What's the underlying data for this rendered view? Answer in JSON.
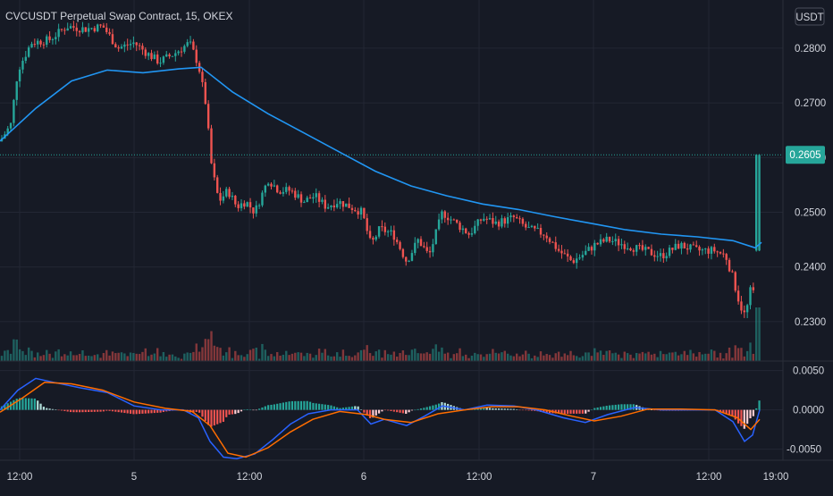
{
  "colors": {
    "background": "#161a25",
    "grid": "#232734",
    "up": "#26a69a",
    "down": "#ef5350",
    "ma": "#2196f3",
    "macd": "#2962ff",
    "signal": "#ff6d00",
    "last_price_label": "#26a69a",
    "text": "#d1d4dc"
  },
  "header": {
    "title": "CVCUSDT Perpetual Swap Contract, 15, OKEX",
    "currency_button": "USDT"
  },
  "chart_data": [
    {
      "type": "candlestick",
      "panel": "price",
      "title": "CVCUSDT Perpetual Swap Contract, 15, OKEX",
      "ylim": [
        0.2228,
        0.2888
      ],
      "yticks": [
        "0.2300",
        "0.2400",
        "0.2500",
        "0.2600",
        "0.2700",
        "0.2800"
      ],
      "last_price": "0.2605",
      "grid": true,
      "series": [
        {
          "name": "",
          "kind": "price_path",
          "points": [
            [
              0,
              0.263
            ],
            [
              12,
              0.266
            ],
            [
              20,
              0.276
            ],
            [
              35,
              0.281
            ],
            [
              55,
              0.2815
            ],
            [
              75,
              0.284
            ],
            [
              95,
              0.2835
            ],
            [
              115,
              0.284
            ],
            [
              132,
              0.28
            ],
            [
              150,
              0.281
            ],
            [
              165,
              0.279
            ],
            [
              178,
              0.2775
            ],
            [
              195,
              0.279
            ],
            [
              212,
              0.281
            ],
            [
              222,
              0.277
            ],
            [
              230,
              0.27
            ],
            [
              237,
              0.258
            ],
            [
              245,
              0.252
            ],
            [
              255,
              0.254
            ],
            [
              265,
              0.251
            ],
            [
              275,
              0.252
            ],
            [
              285,
              0.25
            ],
            [
              300,
              0.256
            ],
            [
              312,
              0.254
            ],
            [
              325,
              0.254
            ],
            [
              340,
              0.252
            ],
            [
              352,
              0.253
            ],
            [
              365,
              0.251
            ],
            [
              378,
              0.252
            ],
            [
              392,
              0.251
            ],
            [
              405,
              0.25
            ],
            [
              415,
              0.244
            ],
            [
              425,
              0.247
            ],
            [
              440,
              0.246
            ],
            [
              455,
              0.241
            ],
            [
              468,
              0.245
            ],
            [
              480,
              0.242
            ],
            [
              495,
              0.25
            ],
            [
              510,
              0.248
            ],
            [
              525,
              0.246
            ],
            [
              540,
              0.249
            ],
            [
              555,
              0.248
            ],
            [
              575,
              0.249
            ],
            [
              590,
              0.247
            ],
            [
              610,
              0.246
            ],
            [
              625,
              0.243
            ],
            [
              640,
              0.241
            ],
            [
              650,
              0.242
            ],
            [
              665,
              0.244
            ],
            [
              680,
              0.245
            ],
            [
              700,
              0.244
            ],
            [
              720,
              0.243
            ],
            [
              740,
              0.242
            ],
            [
              760,
              0.244
            ],
            [
              780,
              0.243
            ],
            [
              800,
              0.243
            ],
            [
              812,
              0.242
            ],
            [
              820,
              0.238
            ],
            [
              828,
              0.233
            ],
            [
              834,
              0.231
            ],
            [
              840,
              0.236
            ],
            [
              845,
              0.235
            ],
            [
              849,
              0.242
            ],
            [
              852,
              0.2605
            ]
          ]
        },
        {
          "name": "",
          "kind": "moving_average",
          "points": [
            [
              0,
              0.263
            ],
            [
              40,
              0.269
            ],
            [
              80,
              0.274
            ],
            [
              120,
              0.276
            ],
            [
              160,
              0.2755
            ],
            [
              200,
              0.2762
            ],
            [
              225,
              0.2765
            ],
            [
              260,
              0.272
            ],
            [
              300,
              0.268
            ],
            [
              340,
              0.2645
            ],
            [
              380,
              0.261
            ],
            [
              420,
              0.2575
            ],
            [
              460,
              0.2548
            ],
            [
              500,
              0.253
            ],
            [
              540,
              0.2515
            ],
            [
              580,
              0.2505
            ],
            [
              620,
              0.2492
            ],
            [
              660,
              0.248
            ],
            [
              700,
              0.2468
            ],
            [
              740,
              0.246
            ],
            [
              780,
              0.2455
            ],
            [
              820,
              0.2448
            ],
            [
              845,
              0.2435
            ],
            [
              852,
              0.2445
            ]
          ]
        }
      ]
    },
    {
      "type": "macd",
      "panel": "oscillator",
      "ylim": [
        -0.0064,
        0.0062
      ],
      "yticks": [
        "0.0050",
        "0.0000",
        "-0.0050"
      ],
      "series": [
        {
          "name": "",
          "kind": "macd_line",
          "points": [
            [
              0,
              0.0
            ],
            [
              20,
              0.0025
            ],
            [
              40,
              0.004
            ],
            [
              60,
              0.0035
            ],
            [
              90,
              0.0028
            ],
            [
              120,
              0.0022
            ],
            [
              150,
              0.0005
            ],
            [
              180,
              0.0
            ],
            [
              205,
              0.0
            ],
            [
              222,
              -0.001
            ],
            [
              235,
              -0.004
            ],
            [
              250,
              -0.006
            ],
            [
              265,
              -0.0062
            ],
            [
              285,
              -0.0056
            ],
            [
              305,
              -0.0038
            ],
            [
              325,
              -0.0018
            ],
            [
              345,
              -0.0005
            ],
            [
              370,
              0.0
            ],
            [
              400,
              0.0
            ],
            [
              415,
              -0.0018
            ],
            [
              430,
              -0.0012
            ],
            [
              455,
              -0.002
            ],
            [
              475,
              -0.0008
            ],
            [
              495,
              0.0005
            ],
            [
              520,
              0.0
            ],
            [
              545,
              0.0006
            ],
            [
              575,
              0.0005
            ],
            [
              600,
              0.0
            ],
            [
              630,
              -0.001
            ],
            [
              655,
              -0.0016
            ],
            [
              680,
              -0.0006
            ],
            [
              710,
              0.0003
            ],
            [
              740,
              0.0
            ],
            [
              770,
              0.0
            ],
            [
              800,
              0.0
            ],
            [
              820,
              -0.0015
            ],
            [
              833,
              -0.004
            ],
            [
              842,
              -0.0032
            ],
            [
              850,
              0.0
            ]
          ]
        },
        {
          "name": "",
          "kind": "signal_line",
          "points": [
            [
              0,
              -0.0003
            ],
            [
              25,
              0.0015
            ],
            [
              50,
              0.0035
            ],
            [
              80,
              0.0033
            ],
            [
              115,
              0.0025
            ],
            [
              150,
              0.001
            ],
            [
              185,
              0.0002
            ],
            [
              215,
              -0.0002
            ],
            [
              235,
              -0.002
            ],
            [
              255,
              -0.0055
            ],
            [
              275,
              -0.006
            ],
            [
              300,
              -0.0048
            ],
            [
              325,
              -0.0028
            ],
            [
              350,
              -0.0012
            ],
            [
              380,
              -0.0002
            ],
            [
              410,
              -0.0006
            ],
            [
              430,
              -0.0012
            ],
            [
              460,
              -0.0016
            ],
            [
              490,
              -0.0005
            ],
            [
              520,
              0.0
            ],
            [
              550,
              0.0004
            ],
            [
              580,
              0.0004
            ],
            [
              610,
              0.0
            ],
            [
              640,
              -0.0008
            ],
            [
              665,
              -0.0014
            ],
            [
              695,
              -0.0008
            ],
            [
              725,
              0.0001
            ],
            [
              760,
              0.0001
            ],
            [
              800,
              0.0
            ],
            [
              825,
              -0.001
            ],
            [
              840,
              -0.0025
            ],
            [
              850,
              -0.0012
            ]
          ]
        }
      ]
    }
  ],
  "x_axis": {
    "labels": [
      {
        "text": "12:00",
        "x": 22
      },
      {
        "text": "5",
        "x": 150
      },
      {
        "text": "12:00",
        "x": 279
      },
      {
        "text": "6",
        "x": 407
      },
      {
        "text": "12:00",
        "x": 536
      },
      {
        "text": "7",
        "x": 664
      },
      {
        "text": "12:00",
        "x": 793
      },
      {
        "text": "19:00",
        "x": 868
      }
    ]
  }
}
